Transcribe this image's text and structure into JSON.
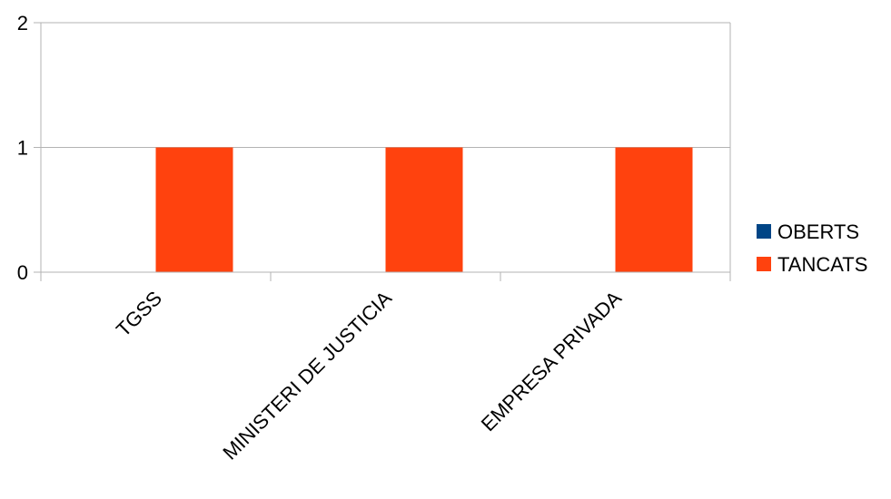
{
  "chart_data": {
    "type": "bar",
    "categories": [
      "TGSS",
      "MINISTERI DE JUSTICIA",
      "EMPRESA PRIVADA"
    ],
    "series": [
      {
        "name": "OBERTS",
        "values": [
          0,
          0,
          0
        ],
        "color": "#004586"
      },
      {
        "name": "TANCATS",
        "values": [
          1,
          1,
          1
        ],
        "color": "#ff420e"
      }
    ],
    "ylim": [
      0,
      2
    ],
    "yticks": [
      "0",
      "1",
      "2"
    ],
    "grid": true,
    "legend": "right"
  }
}
